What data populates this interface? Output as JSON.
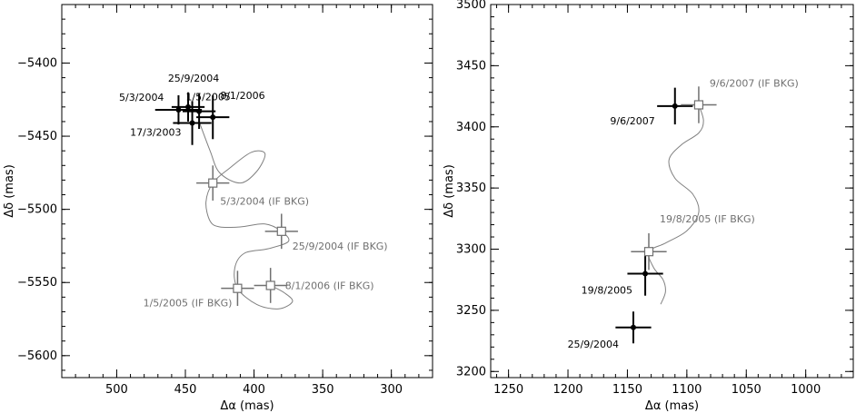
{
  "chart_data": [
    {
      "type": "scatter",
      "title": "",
      "xlabel": "Δα (mas)",
      "ylabel": "Δδ (mas)",
      "x_reversed": true,
      "xlim": [
        540,
        270
      ],
      "ylim": [
        -5615,
        -5360
      ],
      "x_ticks": [
        500,
        450,
        400,
        350,
        300
      ],
      "y_ticks": [
        -5400,
        -5450,
        -5500,
        -5550,
        -5600
      ],
      "x_minor_step": 10,
      "y_minor_step": 10,
      "series": [
        {
          "style": "observed",
          "color": "#000000",
          "points": [
            {
              "x": 455,
              "y": -5432,
              "xerr": 17,
              "yerr": 10,
              "label": "5/3/2004"
            },
            {
              "x": 448,
              "y": -5430,
              "xerr": 12,
              "yerr": 10,
              "label": "25/9/2004"
            },
            {
              "x": 440,
              "y": -5433,
              "xerr": 12,
              "yerr": 12,
              "label": "1/5/2005"
            },
            {
              "x": 430,
              "y": -5437,
              "xerr": 12,
              "yerr": 15,
              "label": "8/1/2006"
            },
            {
              "x": 445,
              "y": -5441,
              "xerr": 14,
              "yerr": 15,
              "label": "17/3/2003"
            }
          ]
        },
        {
          "style": "background-prediction",
          "color": "#707070",
          "points": [
            {
              "x": 430,
              "y": -5482,
              "xerr": 12,
              "yerr": 12,
              "label": "5/3/2004 (IF BKG)"
            },
            {
              "x": 380,
              "y": -5515,
              "xerr": 12,
              "yerr": 12,
              "label": "25/9/2004 (IF BKG)"
            },
            {
              "x": 412,
              "y": -5554,
              "xerr": 12,
              "yerr": 12,
              "label": "1/5/2005 (IF BKG)"
            },
            {
              "x": 388,
              "y": -5552,
              "xerr": 12,
              "yerr": 12,
              "label": "8/1/2006 (IF BKG)"
            }
          ]
        }
      ],
      "track": [
        [
          440,
          -5440
        ],
        [
          432,
          -5460
        ],
        [
          425,
          -5475
        ],
        [
          410,
          -5482
        ],
        [
          398,
          -5474
        ],
        [
          392,
          -5462
        ],
        [
          402,
          -5461
        ],
        [
          418,
          -5472
        ],
        [
          430,
          -5482
        ],
        [
          435,
          -5495
        ],
        [
          432,
          -5508
        ],
        [
          425,
          -5512
        ],
        [
          410,
          -5512
        ],
        [
          392,
          -5510
        ],
        [
          380,
          -5515
        ],
        [
          375,
          -5522
        ],
        [
          390,
          -5527
        ],
        [
          407,
          -5530
        ],
        [
          414,
          -5540
        ],
        [
          412,
          -5554
        ],
        [
          398,
          -5565
        ],
        [
          382,
          -5568
        ],
        [
          372,
          -5563
        ],
        [
          378,
          -5557
        ],
        [
          388,
          -5552
        ]
      ]
    },
    {
      "type": "scatter",
      "title": "",
      "xlabel": "Δα (mas)",
      "ylabel": "Δδ (mas)",
      "x_reversed": true,
      "xlim": [
        1265,
        960
      ],
      "ylim": [
        3195,
        3500
      ],
      "x_ticks": [
        1250,
        1200,
        1150,
        1100,
        1050,
        1000
      ],
      "y_ticks": [
        3200,
        3250,
        3300,
        3350,
        3400,
        3450,
        3500
      ],
      "x_minor_step": 10,
      "y_minor_step": 10,
      "series": [
        {
          "style": "observed",
          "color": "#000000",
          "points": [
            {
              "x": 1110,
              "y": 3417,
              "xerr": 15,
              "yerr": 15,
              "label": "9/6/2007"
            },
            {
              "x": 1135,
              "y": 3280,
              "xerr": 15,
              "yerr": 18,
              "label": "19/8/2005"
            },
            {
              "x": 1145,
              "y": 3236,
              "xerr": 15,
              "yerr": 13,
              "label": "25/9/2004"
            }
          ]
        },
        {
          "style": "background-prediction",
          "color": "#707070",
          "points": [
            {
              "x": 1090,
              "y": 3418,
              "xerr": 15,
              "yerr": 15,
              "label": "9/6/2007 (IF BKG)"
            },
            {
              "x": 1132,
              "y": 3298,
              "xerr": 15,
              "yerr": 15,
              "label": "19/8/2005 (IF BKG)"
            }
          ]
        }
      ],
      "track": [
        [
          1090,
          3418
        ],
        [
          1086,
          3405
        ],
        [
          1090,
          3395
        ],
        [
          1105,
          3385
        ],
        [
          1115,
          3373
        ],
        [
          1110,
          3358
        ],
        [
          1095,
          3345
        ],
        [
          1090,
          3330
        ],
        [
          1100,
          3315
        ],
        [
          1118,
          3305
        ],
        [
          1132,
          3298
        ],
        [
          1128,
          3285
        ],
        [
          1120,
          3275
        ],
        [
          1118,
          3265
        ],
        [
          1122,
          3255
        ]
      ]
    }
  ]
}
